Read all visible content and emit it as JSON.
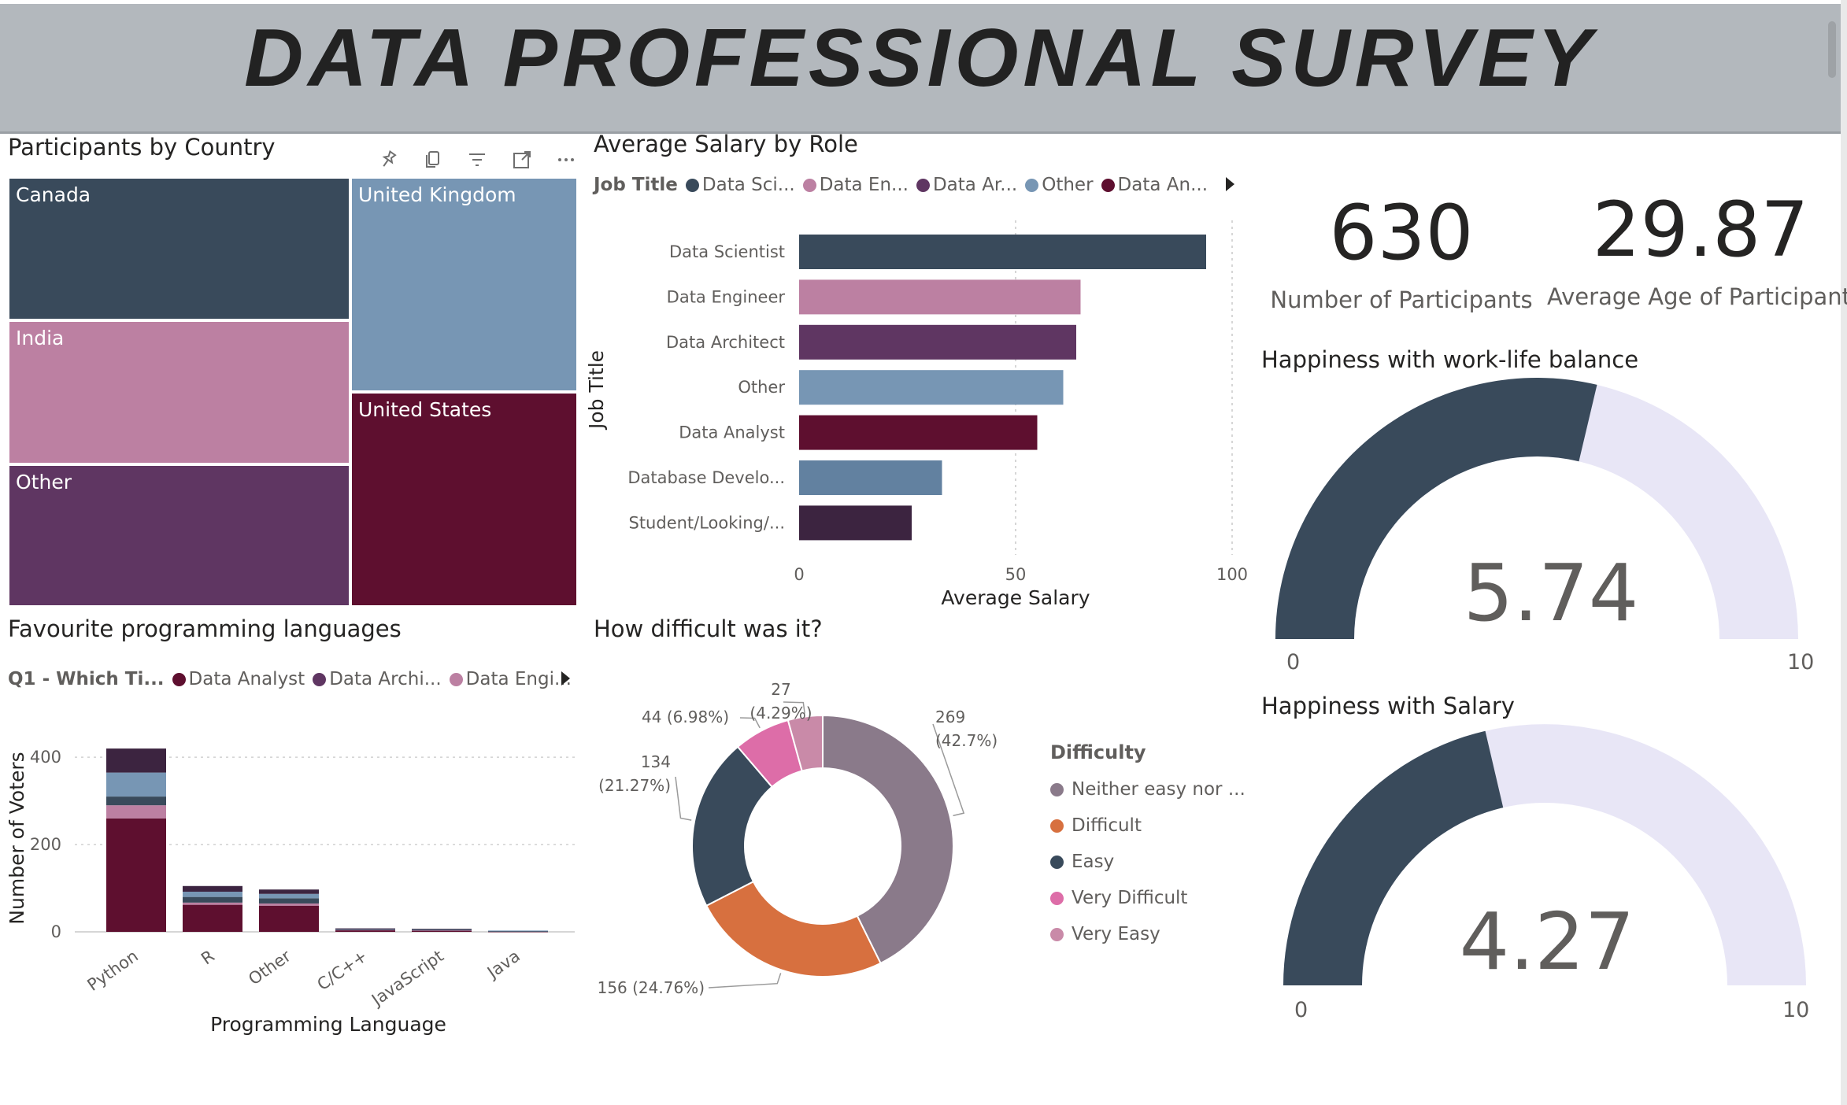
{
  "banner": {
    "title": "DATA PROFESSIONAL SURVEY"
  },
  "colors": {
    "dark_slate": "#394a5b",
    "pink": "#bc80a2",
    "purple": "#5f3662",
    "blue_grey": "#7796b4",
    "maroon": "#5e0f2f",
    "steel": "#6281a0",
    "deep_plum": "#3c2440",
    "mauve": "#8a7a8a",
    "orange": "#d7703f",
    "magenta": "#dd6da8",
    "light_pink": "#c98aa8",
    "gauge_bg": "#e8e6f6"
  },
  "treemap": {
    "title": "Participants by Country",
    "toolbar": [
      "pin-icon",
      "copy-icon",
      "filter-icon",
      "focus-mode-icon",
      "more-options-icon"
    ],
    "items": [
      {
        "label": "Canada",
        "color": "#394a5b"
      },
      {
        "label": "United Kingdom",
        "color": "#7796b4"
      },
      {
        "label": "India",
        "color": "#bc80a2"
      },
      {
        "label": "United States",
        "color": "#5e0f2f"
      },
      {
        "label": "Other",
        "color": "#5f3662"
      }
    ]
  },
  "salary": {
    "title": "Average Salary by Role",
    "legend_title": "Job Title",
    "legend": [
      {
        "label": "Data Sci...",
        "color": "#394a5b"
      },
      {
        "label": "Data En...",
        "color": "#bc80a2"
      },
      {
        "label": "Data Ar...",
        "color": "#5f3662"
      },
      {
        "label": "Other",
        "color": "#7796b4"
      },
      {
        "label": "Data An...",
        "color": "#5e0f2f"
      }
    ],
    "ylabel": "Job Title",
    "xlabel": "Average Salary"
  },
  "cards": {
    "participants": {
      "value": "630",
      "label": "Number of Participants"
    },
    "age": {
      "value": "29.87",
      "label": "Average Age of Participants"
    }
  },
  "gauges": [
    {
      "title": "Happiness with work-life balance",
      "value": 5.74,
      "display": "5.74",
      "min": 0,
      "max": 10,
      "min_label": "0",
      "max_label": "10"
    },
    {
      "title": "Happiness with Salary",
      "value": 4.27,
      "display": "4.27",
      "min": 0,
      "max": 10,
      "min_label": "0",
      "max_label": "10"
    }
  ],
  "languages": {
    "title": "Favourite programming languages",
    "legend_title": "Q1 - Which Ti...",
    "legend": [
      {
        "label": "Data Analyst",
        "color": "#5e0f2f"
      },
      {
        "label": "Data Archi...",
        "color": "#5f3662"
      },
      {
        "label": "Data Engi...",
        "color": "#bc80a2"
      }
    ]
  },
  "difficulty": {
    "title": "How difficult was it?",
    "legend_title": "Difficulty",
    "legend": [
      {
        "label": "Neither easy nor ...",
        "color": "#8a7a8a"
      },
      {
        "label": "Difficult",
        "color": "#d7703f"
      },
      {
        "label": "Easy",
        "color": "#394a5b"
      },
      {
        "label": "Very Difficult",
        "color": "#dd6da8"
      },
      {
        "label": "Very Easy",
        "color": "#c98aa8"
      }
    ]
  },
  "chart_data": [
    {
      "type": "bar",
      "orientation": "horizontal",
      "title": "Average Salary by Role",
      "xlabel": "Average Salary",
      "ylabel": "Job Title",
      "categories": [
        "Data Scientist",
        "Data Engineer",
        "Data Architect",
        "Other",
        "Data Analyst",
        "Database Develo...",
        "Student/Looking/..."
      ],
      "values": [
        94,
        65,
        64,
        61,
        55,
        33,
        26
      ],
      "colors": [
        "#394a5b",
        "#bc80a2",
        "#5f3662",
        "#7796b4",
        "#5e0f2f",
        "#6281a0",
        "#3c2440"
      ],
      "xlim": [
        0,
        100
      ],
      "xticks": [
        "0",
        "50",
        "100"
      ],
      "grid": true
    },
    {
      "type": "bar",
      "stacked": true,
      "title": "Favourite programming languages",
      "xlabel": "Programming Language",
      "ylabel": "Number of Voters",
      "categories": [
        "Python",
        "R",
        "Other",
        "C/C++",
        "JavaScript",
        "Java"
      ],
      "series": [
        {
          "name": "Data Analyst",
          "color": "#5e0f2f",
          "values": [
            260,
            62,
            60,
            4,
            3,
            1
          ]
        },
        {
          "name": "Data Engi...",
          "color": "#bc80a2",
          "values": [
            30,
            5,
            5,
            1,
            1,
            0
          ]
        },
        {
          "color": "#394a5b",
          "values": [
            20,
            13,
            12,
            1,
            1,
            1
          ]
        },
        {
          "color": "#7796b4",
          "values": [
            55,
            12,
            10,
            1,
            1,
            1
          ]
        },
        {
          "color": "#3c2440",
          "values": [
            55,
            13,
            10,
            1,
            1,
            0
          ]
        }
      ],
      "ylim": [
        0,
        440
      ],
      "yticks": [
        "0",
        "200",
        "400"
      ],
      "grid": true
    },
    {
      "type": "pie",
      "donut": true,
      "title": "How difficult was it?",
      "slices": [
        {
          "label": "Neither easy nor ...",
          "value": 269,
          "percent": "42.7%",
          "color": "#8a7a8a",
          "text": "269",
          "pct_text": "(42.7%)"
        },
        {
          "label": "Difficult",
          "value": 156,
          "percent": "24.76%",
          "color": "#d7703f",
          "text": "156 (24.76%)"
        },
        {
          "label": "Easy",
          "value": 134,
          "percent": "21.27%",
          "color": "#394a5b",
          "text": "134",
          "pct_text": "(21.27%)"
        },
        {
          "label": "Very Difficult",
          "value": 44,
          "percent": "6.98%",
          "color": "#dd6da8",
          "text": "44 (6.98%)"
        },
        {
          "label": "Very Easy",
          "value": 27,
          "percent": "4.29%",
          "color": "#c98aa8",
          "text": "27",
          "pct_text": "(4.29%)"
        }
      ]
    }
  ]
}
